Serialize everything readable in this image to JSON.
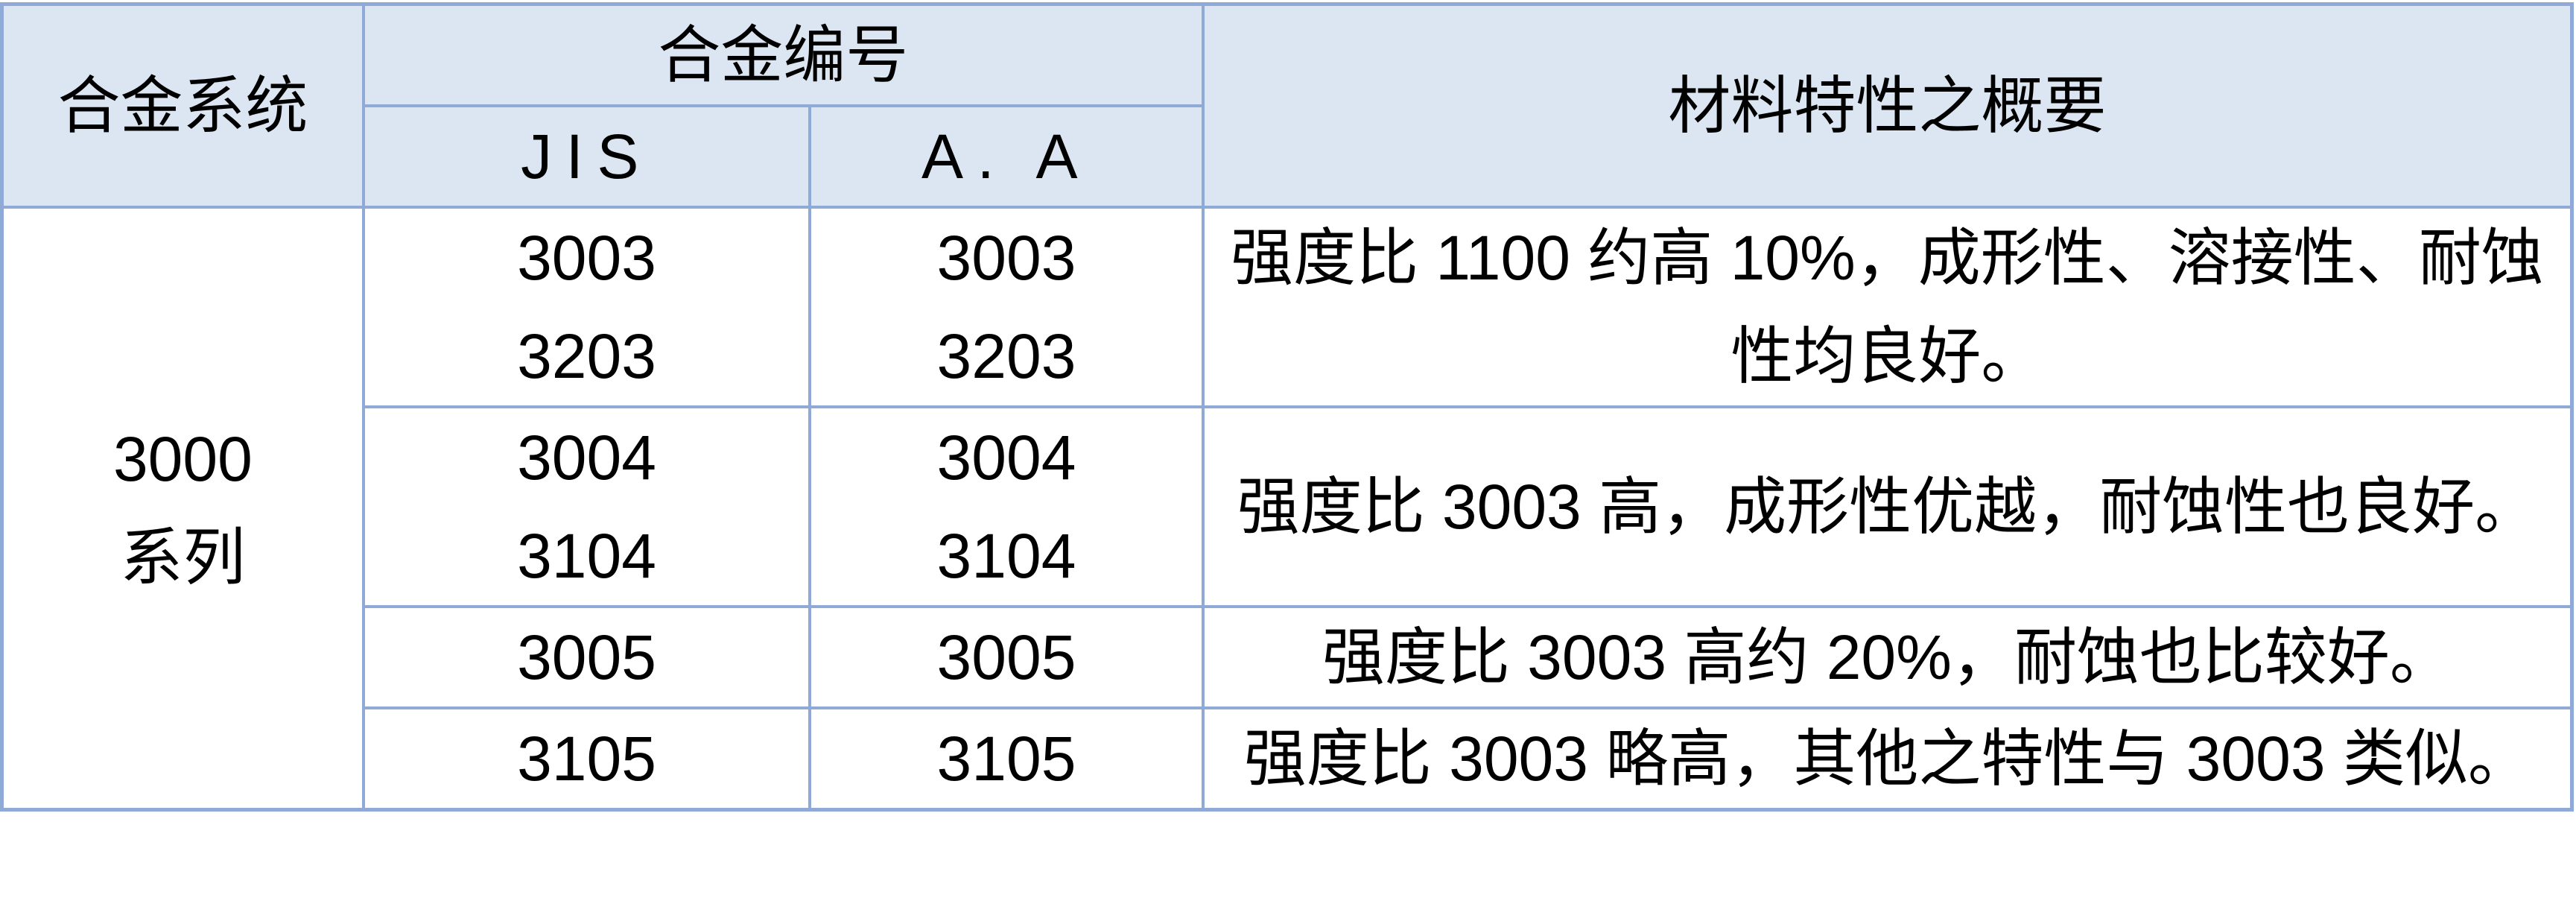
{
  "table": {
    "header": {
      "alloy_system": "合金系统",
      "alloy_number": "合金编号",
      "jis": "JIS",
      "aa": "A. A",
      "material_summary": "材料特性之概要"
    },
    "series_label": "3000\n系列",
    "rows": [
      {
        "jis": "3003\n3203",
        "aa": "3003\n3203",
        "summary": "强度比 1100 约高 10%，成形性、溶接性、耐蚀性均良好。"
      },
      {
        "jis": "3004\n3104",
        "aa": "3004\n3104",
        "summary": "强度比 3003 高，成形性优越，耐蚀性也良好。"
      },
      {
        "jis": "3005",
        "aa": "3005",
        "summary": "强度比 3003 高约 20%，耐蚀也比较好。"
      },
      {
        "jis": "3105",
        "aa": "3105",
        "summary": "强度比 3003 略高，其他之特性与 3003 类似。"
      }
    ],
    "colors": {
      "border_color": "#90aad8",
      "header_bg": "#dce6f3",
      "text_color": "#000000",
      "page_bg": "#ffffff"
    }
  }
}
